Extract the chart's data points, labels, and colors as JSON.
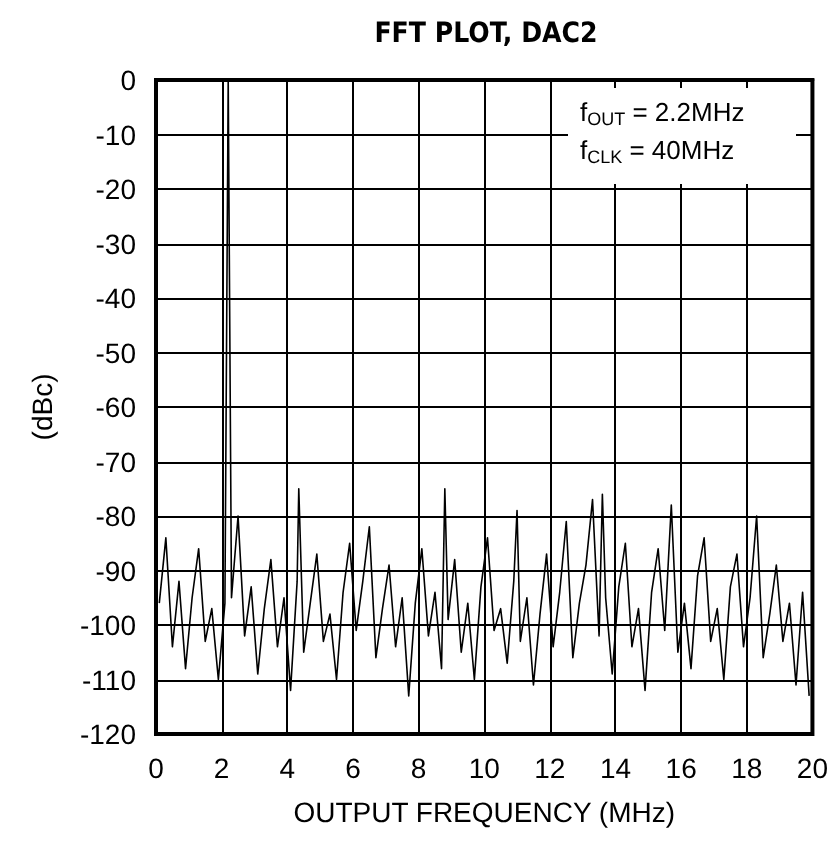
{
  "chart_data": {
    "type": "line",
    "title": "FFT PLOT, DAC2",
    "xlabel": "OUTPUT FREQUENCY (MHz)",
    "ylabel": "(dBc)",
    "annotations": [
      "f$_{OUT}$ = 2.2MHz",
      "f$_{CLK}$ = 40MHz"
    ],
    "x": [
      0.1,
      0.3,
      0.5,
      0.7,
      0.9,
      1.1,
      1.3,
      1.5,
      1.7,
      1.9,
      2.1,
      2.2,
      2.3,
      2.5,
      2.7,
      2.9,
      3.1,
      3.3,
      3.5,
      3.7,
      3.9,
      4.1,
      4.3,
      4.35,
      4.5,
      4.7,
      4.9,
      5.1,
      5.3,
      5.5,
      5.7,
      5.9,
      6.1,
      6.3,
      6.5,
      6.7,
      6.9,
      7.1,
      7.3,
      7.5,
      7.7,
      7.9,
      8.1,
      8.3,
      8.5,
      8.7,
      8.8,
      8.9,
      9.1,
      9.3,
      9.5,
      9.7,
      9.9,
      10.1,
      10.3,
      10.5,
      10.7,
      10.9,
      11.0,
      11.1,
      11.3,
      11.5,
      11.7,
      11.9,
      12.1,
      12.3,
      12.5,
      12.7,
      12.9,
      13.1,
      13.3,
      13.5,
      13.6,
      13.7,
      13.9,
      14.1,
      14.3,
      14.5,
      14.7,
      14.9,
      15.1,
      15.3,
      15.5,
      15.7,
      15.9,
      16.1,
      16.3,
      16.5,
      16.7,
      16.9,
      17.1,
      17.3,
      17.5,
      17.7,
      17.9,
      18.1,
      18.3,
      18.5,
      18.7,
      18.9,
      19.1,
      19.3,
      19.5,
      19.7,
      19.9
    ],
    "series": [
      {
        "color": "#000000",
        "values": [
          -96,
          -84,
          -104,
          -92,
          -108,
          -95,
          -86,
          -103,
          -97,
          -110,
          -96,
          0,
          -95,
          -80,
          -102,
          -93,
          -109,
          -97,
          -88,
          -104,
          -95,
          -112,
          -92,
          -75,
          -105,
          -96,
          -87,
          -103,
          -98,
          -110,
          -94,
          -85,
          -101,
          -92,
          -82,
          -106,
          -97,
          -89,
          -104,
          -95,
          -113,
          -96,
          -86,
          -102,
          -94,
          -108,
          -75,
          -99,
          -88,
          -105,
          -96,
          -110,
          -93,
          -84,
          -101,
          -97,
          -107,
          -92,
          -79,
          -103,
          -95,
          -111,
          -98,
          -87,
          -104,
          -94,
          -81,
          -106,
          -96,
          -89,
          -77,
          -102,
          -76,
          -95,
          -109,
          -93,
          -85,
          -104,
          -97,
          -112,
          -94,
          -86,
          -101,
          -78,
          -105,
          -96,
          -108,
          -91,
          -84,
          -103,
          -97,
          -110,
          -93,
          -87,
          -104,
          -95,
          -80,
          -106,
          -98,
          -89,
          -103,
          -96,
          -111,
          -94,
          -113
        ]
      }
    ],
    "xlim": [
      0,
      20
    ],
    "xticks": [
      0,
      2,
      4,
      6,
      8,
      10,
      12,
      14,
      16,
      18,
      20
    ],
    "ylim": [
      -120,
      0
    ],
    "yticks": [
      0,
      -10,
      -20,
      -30,
      -40,
      -50,
      -60,
      -70,
      -80,
      -90,
      -100,
      -110,
      -120
    ],
    "grid": true,
    "marker": "none",
    "line_style": "solid"
  }
}
